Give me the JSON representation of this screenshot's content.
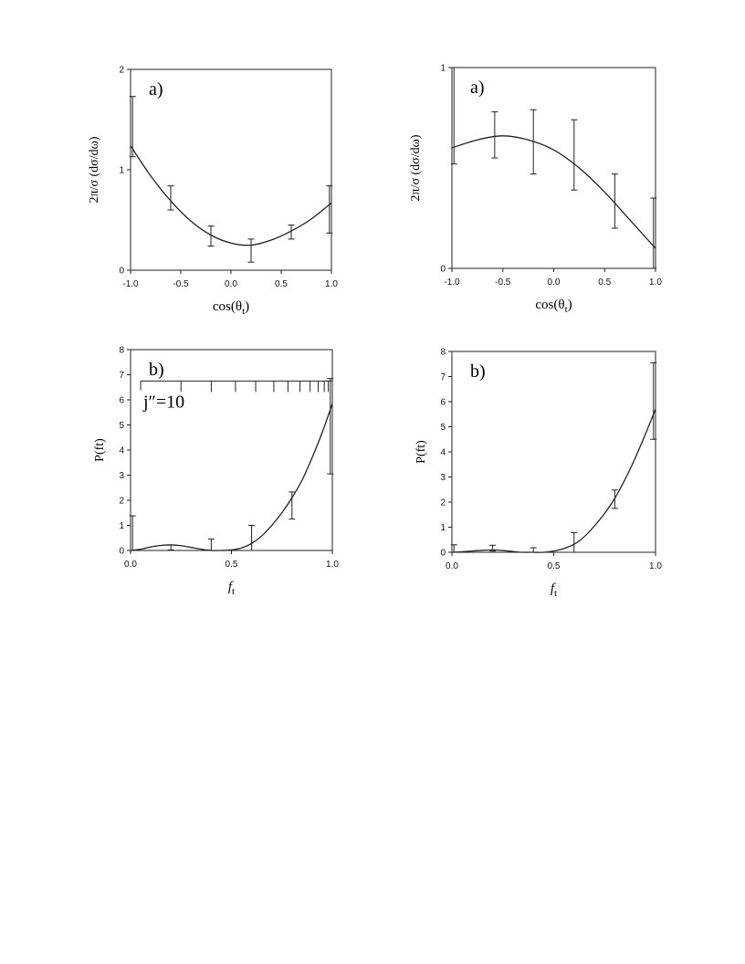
{
  "chart_data": [
    {
      "type": "line",
      "panel_label": "a)",
      "xlabel": "cos(θt)",
      "xlabel_main": "cos(θ",
      "xlabel_sub": "t",
      "xlabel_close": ")",
      "ylabel": "2π/σ (dσ/dω)",
      "xlim": [
        -1.0,
        1.0
      ],
      "ylim": [
        0,
        2
      ],
      "xticks": [
        "-1.0",
        "-0.5",
        "0.0",
        "0.5",
        "1.0"
      ],
      "xtick_values": [
        -1.0,
        -0.5,
        0.0,
        0.5,
        1.0
      ],
      "yticks": [
        "0",
        "1",
        "2"
      ],
      "ytick_values": [
        0,
        1,
        2
      ],
      "points": [
        {
          "x": -0.98,
          "y": 1.43,
          "lo": 1.13,
          "hi": 1.73
        },
        {
          "x": -0.6,
          "y": 0.71,
          "lo": 0.6,
          "hi": 0.84
        },
        {
          "x": -0.2,
          "y": 0.34,
          "lo": 0.24,
          "hi": 0.44
        },
        {
          "x": 0.2,
          "y": 0.19,
          "lo": 0.08,
          "hi": 0.31
        },
        {
          "x": 0.6,
          "y": 0.38,
          "lo": 0.31,
          "hi": 0.45
        },
        {
          "x": 0.98,
          "y": 0.61,
          "lo": 0.37,
          "hi": 0.84
        }
      ],
      "curve": {
        "x": [
          -1.0,
          -0.8,
          -0.6,
          -0.4,
          -0.2,
          0.0,
          0.2,
          0.4,
          0.6,
          0.8,
          1.0
        ],
        "y": [
          1.24,
          0.94,
          0.69,
          0.49,
          0.35,
          0.27,
          0.25,
          0.3,
          0.39,
          0.51,
          0.67
        ]
      }
    },
    {
      "type": "line",
      "panel_label": "a)",
      "xlabel": "cos(θt)",
      "xlabel_main": "cos(θ",
      "xlabel_sub": "t",
      "xlabel_close": ")",
      "ylabel": "2π/σ (dσ/dω)",
      "xlim": [
        -1.0,
        1.0
      ],
      "ylim": [
        0,
        1
      ],
      "xticks": [
        "-1.0",
        "-0.5",
        "0.0",
        "0.5",
        "1.0"
      ],
      "xtick_values": [
        -1.0,
        -0.5,
        0.0,
        0.5,
        1.0
      ],
      "yticks": [
        "0",
        "1"
      ],
      "ytick_values": [
        0,
        1
      ],
      "points": [
        {
          "x": -0.98,
          "y": 0.76,
          "lo": 0.52,
          "hi": 1.0
        },
        {
          "x": -0.58,
          "y": 0.69,
          "lo": 0.55,
          "hi": 0.78
        },
        {
          "x": -0.2,
          "y": 0.63,
          "lo": 0.47,
          "hi": 0.79
        },
        {
          "x": 0.2,
          "y": 0.58,
          "lo": 0.39,
          "hi": 0.74
        },
        {
          "x": 0.6,
          "y": 0.32,
          "lo": 0.2,
          "hi": 0.47
        },
        {
          "x": 0.98,
          "y": 0.16,
          "lo": 0.0,
          "hi": 0.35
        }
      ],
      "curve": {
        "x": [
          -1.0,
          -0.75,
          -0.5,
          -0.25,
          0.0,
          0.25,
          0.5,
          0.75,
          1.0
        ],
        "y": [
          0.6,
          0.64,
          0.66,
          0.64,
          0.59,
          0.5,
          0.38,
          0.24,
          0.1
        ]
      }
    },
    {
      "type": "line",
      "panel_label": "b)",
      "annotation": "j″=10",
      "xlabel": "ft",
      "xlabel_main": "f",
      "xlabel_sub": "t",
      "ylabel": "P(ft)",
      "xlim": [
        0.0,
        1.0
      ],
      "ylim": [
        0,
        8
      ],
      "xticks": [
        "0.0",
        "0.5",
        "1.0"
      ],
      "xtick_values": [
        0.0,
        0.5,
        1.0
      ],
      "yticks": [
        "0",
        "1",
        "2",
        "3",
        "4",
        "5",
        "6",
        "7",
        "8"
      ],
      "ytick_values": [
        0,
        1,
        2,
        3,
        4,
        5,
        6,
        7,
        8
      ],
      "comb_y": 6.75,
      "comb_x": [
        0.05,
        0.25,
        0.4,
        0.52,
        0.62,
        0.71,
        0.78,
        0.84,
        0.89,
        0.93,
        0.96,
        0.98,
        1.0
      ],
      "points": [
        {
          "x": 0.01,
          "y": 0.6,
          "lo": 0.0,
          "hi": 1.38
        },
        {
          "x": 0.2,
          "y": 0.12,
          "lo": 0.02,
          "hi": 0.22
        },
        {
          "x": 0.4,
          "y": 0.2,
          "lo": 0.0,
          "hi": 0.46
        },
        {
          "x": 0.6,
          "y": 0.5,
          "lo": 0.0,
          "hi": 1.0
        },
        {
          "x": 0.8,
          "y": 1.78,
          "lo": 1.25,
          "hi": 2.33
        },
        {
          "x": 0.99,
          "y": 4.95,
          "lo": 3.05,
          "hi": 6.85
        }
      ],
      "curve": {
        "x": [
          0.0,
          0.05,
          0.1,
          0.15,
          0.2,
          0.25,
          0.3,
          0.35,
          0.4,
          0.45,
          0.5,
          0.55,
          0.6,
          0.65,
          0.7,
          0.75,
          0.8,
          0.85,
          0.9,
          0.95,
          1.0
        ],
        "y": [
          0.0,
          0.05,
          0.14,
          0.2,
          0.22,
          0.19,
          0.12,
          0.05,
          0.0,
          0.0,
          0.02,
          0.1,
          0.28,
          0.58,
          1.0,
          1.5,
          2.1,
          2.8,
          3.7,
          4.7,
          5.85
        ]
      }
    },
    {
      "type": "line",
      "panel_label": "b)",
      "xlabel": "ft",
      "xlabel_main": "f",
      "xlabel_sub": "t",
      "ylabel": "P(ft)",
      "xlim": [
        0.0,
        1.0
      ],
      "ylim": [
        0,
        8
      ],
      "xticks": [
        "0.0",
        "0.5",
        "1.0"
      ],
      "xtick_values": [
        0.0,
        0.5,
        1.0
      ],
      "yticks": [
        "0",
        "1",
        "2",
        "3",
        "4",
        "5",
        "6",
        "7",
        "8"
      ],
      "ytick_values": [
        0,
        1,
        2,
        3,
        4,
        5,
        6,
        7,
        8
      ],
      "points": [
        {
          "x": 0.01,
          "y": 0.15,
          "lo": 0.0,
          "hi": 0.3
        },
        {
          "x": 0.2,
          "y": 0.15,
          "lo": 0.05,
          "hi": 0.28
        },
        {
          "x": 0.4,
          "y": 0.08,
          "lo": 0.0,
          "hi": 0.18
        },
        {
          "x": 0.6,
          "y": 0.4,
          "lo": 0.0,
          "hi": 0.78
        },
        {
          "x": 0.8,
          "y": 2.12,
          "lo": 1.75,
          "hi": 2.48
        },
        {
          "x": 0.99,
          "y": 6.0,
          "lo": 4.5,
          "hi": 7.55
        }
      ],
      "curve": {
        "x": [
          0.0,
          0.05,
          0.1,
          0.15,
          0.2,
          0.25,
          0.3,
          0.35,
          0.4,
          0.45,
          0.5,
          0.55,
          0.6,
          0.65,
          0.7,
          0.75,
          0.8,
          0.85,
          0.9,
          0.95,
          1.0
        ],
        "y": [
          0.0,
          0.02,
          0.05,
          0.08,
          0.09,
          0.07,
          0.03,
          0.0,
          0.0,
          0.0,
          0.05,
          0.15,
          0.32,
          0.62,
          1.05,
          1.55,
          2.15,
          2.9,
          3.75,
          4.7,
          5.7
        ]
      }
    }
  ]
}
